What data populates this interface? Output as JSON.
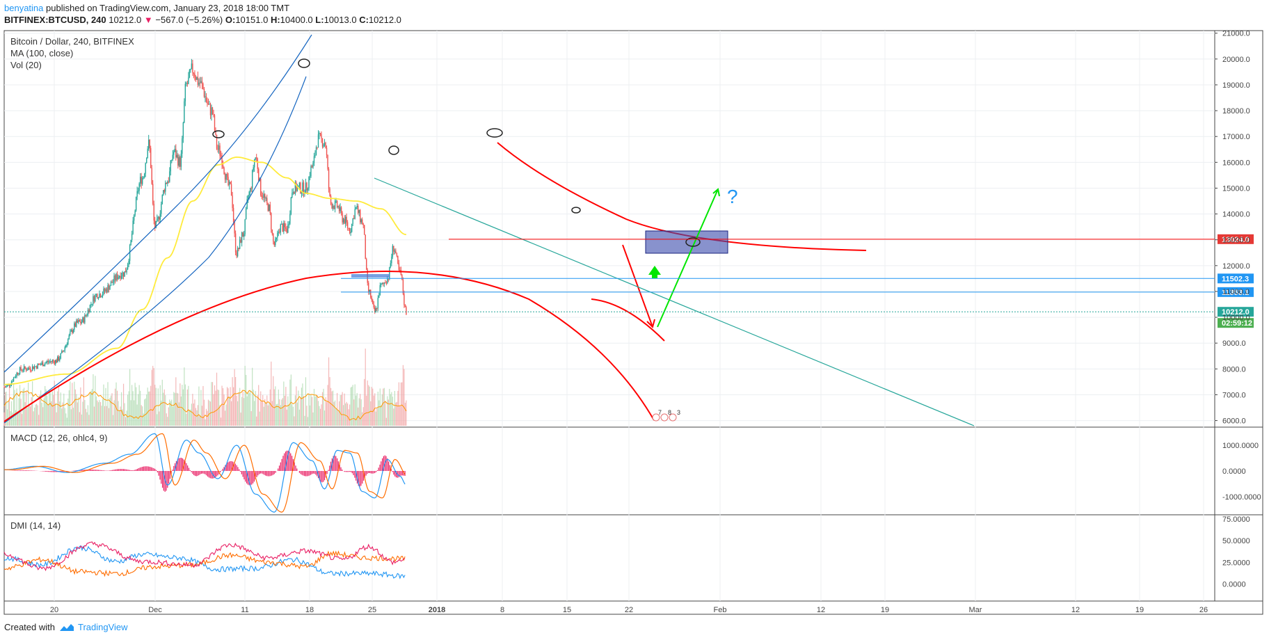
{
  "header": {
    "username": "benyatina",
    "published_text": " published on TradingView.com, January 23, 2018 18:00 TMT",
    "symbol": "BITFINEX:BTCUSD, 240",
    "last": "10212.0",
    "change": "−567.0 (−5.26%)",
    "o_label": "O:",
    "o_value": "10151.0",
    "h_label": "H:",
    "h_value": "10400.0",
    "l_label": "L:",
    "l_value": "10013.0",
    "c_label": "C:",
    "c_value": "10212.0"
  },
  "footer": {
    "created_with": "Created with",
    "brand": "TradingView"
  },
  "colors": {
    "up": "#26a69a",
    "down": "#ef5350",
    "ma": "#ffeb3b",
    "annotation_red": "#ff0000",
    "annotation_green": "#00e600",
    "annotation_blue": "#1565c0",
    "trend_teal": "#26a69a",
    "macd_line": "#2196f3",
    "signal_line": "#ff6d00",
    "hist": "#e91e63",
    "dmi_plus": "#2196f3",
    "dmi_minus": "#ff6d00",
    "adx": "#e91e63"
  },
  "chart_data": [
    {
      "type": "candlestick",
      "title": "Bitcoin / Dollar, 240, BITFINEX",
      "indicators": [
        "MA (100, close)",
        "Vol (20)"
      ],
      "x_tick_labels": [
        "20",
        "Dec",
        "11",
        "18",
        "25",
        "2018",
        "8",
        "15",
        "22",
        "Feb",
        "12",
        "19",
        "Mar",
        "12",
        "19",
        "26"
      ],
      "y_tick_labels": [
        "21000.0",
        "20000.0",
        "19000.0",
        "18000.0",
        "17000.0",
        "16000.0",
        "15000.0",
        "14000.0",
        "13000.0",
        "12000.0",
        "11000.0",
        "10000.0",
        "9000.0",
        "8000.0",
        "7000.0",
        "6000.0"
      ],
      "ylim": [
        5800,
        21100
      ],
      "price_anchors": [
        {
          "day": 0,
          "price": 7300
        },
        {
          "day": 3,
          "price": 8000
        },
        {
          "day": 8,
          "price": 8300
        },
        {
          "day": 12,
          "price": 9800
        },
        {
          "day": 15,
          "price": 10900
        },
        {
          "day": 19,
          "price": 11700
        },
        {
          "day": 22,
          "price": 15400
        },
        {
          "day": 23,
          "price": 16700
        },
        {
          "day": 24,
          "price": 13500
        },
        {
          "day": 26,
          "price": 15300
        },
        {
          "day": 27,
          "price": 16400
        },
        {
          "day": 28,
          "price": 16000
        },
        {
          "day": 29,
          "price": 19000
        },
        {
          "day": 30,
          "price": 19600
        },
        {
          "day": 31,
          "price": 19100
        },
        {
          "day": 33,
          "price": 18000
        },
        {
          "day": 34,
          "price": 16500
        },
        {
          "day": 36,
          "price": 15000
        },
        {
          "day": 37,
          "price": 12500
        },
        {
          "day": 38,
          "price": 13200
        },
        {
          "day": 39,
          "price": 14800
        },
        {
          "day": 40,
          "price": 16200
        },
        {
          "day": 41,
          "price": 14800
        },
        {
          "day": 42,
          "price": 14300
        },
        {
          "day": 43,
          "price": 12800
        },
        {
          "day": 44,
          "price": 13500
        },
        {
          "day": 45,
          "price": 13400
        },
        {
          "day": 46,
          "price": 15000
        },
        {
          "day": 48,
          "price": 15000
        },
        {
          "day": 49,
          "price": 15800
        },
        {
          "day": 50,
          "price": 16900
        },
        {
          "day": 51,
          "price": 16800
        },
        {
          "day": 52,
          "price": 14400
        },
        {
          "day": 53,
          "price": 14300
        },
        {
          "day": 54,
          "price": 13800
        },
        {
          "day": 55,
          "price": 13400
        },
        {
          "day": 56,
          "price": 14200
        },
        {
          "day": 57,
          "price": 13700
        },
        {
          "day": 58,
          "price": 11000
        },
        {
          "day": 59,
          "price": 10200
        },
        {
          "day": 60,
          "price": 11200
        },
        {
          "day": 61,
          "price": 11500
        },
        {
          "day": 62,
          "price": 12700
        },
        {
          "day": 63,
          "price": 11700
        },
        {
          "day": 64,
          "price": 10212
        }
      ],
      "ma100_anchors": [
        {
          "day": 0,
          "price": 7400
        },
        {
          "day": 10,
          "price": 7800
        },
        {
          "day": 18,
          "price": 8800
        },
        {
          "day": 22,
          "price": 10300
        },
        {
          "day": 26,
          "price": 12300
        },
        {
          "day": 30,
          "price": 14500
        },
        {
          "day": 34,
          "price": 15900
        },
        {
          "day": 37,
          "price": 16200
        },
        {
          "day": 41,
          "price": 16000
        },
        {
          "day": 45,
          "price": 15400
        },
        {
          "day": 48,
          "price": 14800
        },
        {
          "day": 52,
          "price": 14600
        },
        {
          "day": 56,
          "price": 14500
        },
        {
          "day": 60,
          "price": 14200
        },
        {
          "day": 64,
          "price": 13200
        }
      ],
      "horizontal_levels": [
        {
          "price": 13024.0,
          "label": "13024.0",
          "color": "#ff0000"
        },
        {
          "price": 11502.3,
          "label": "11502.3",
          "color": "#2196f3"
        },
        {
          "price": 11353.1,
          "label": "11353.1",
          "color": "#2196f3"
        }
      ],
      "last_price": {
        "price": 10212.0,
        "label": "10212.0",
        "countdown": "02:59:12"
      },
      "annotation_text": [
        "?"
      ],
      "event_labels": [
        "7",
        "8",
        "3"
      ]
    },
    {
      "type": "line",
      "title": "MACD (12, 26, ohlc4, 9)",
      "y_tick_labels": [
        "1000.0000",
        "0.0000",
        "-1000.0000"
      ],
      "ylim": [
        -1650,
        1650
      ],
      "macd_anchors": [
        {
          "day": 0,
          "value": 50
        },
        {
          "day": 5,
          "value": 180
        },
        {
          "day": 10,
          "value": -60
        },
        {
          "day": 16,
          "value": 300
        },
        {
          "day": 20,
          "value": 650
        },
        {
          "day": 24,
          "value": 1450
        },
        {
          "day": 26,
          "value": -550
        },
        {
          "day": 29,
          "value": 1200
        },
        {
          "day": 31,
          "value": 700
        },
        {
          "day": 34,
          "value": -300
        },
        {
          "day": 37,
          "value": 1000
        },
        {
          "day": 40,
          "value": -900
        },
        {
          "day": 43,
          "value": -1600
        },
        {
          "day": 46,
          "value": 1100
        },
        {
          "day": 49,
          "value": 400
        },
        {
          "day": 51,
          "value": -700
        },
        {
          "day": 53,
          "value": 800
        },
        {
          "day": 55,
          "value": 700
        },
        {
          "day": 57,
          "value": -800
        },
        {
          "day": 59,
          "value": -1050
        },
        {
          "day": 61,
          "value": 450
        },
        {
          "day": 63,
          "value": -200
        },
        {
          "day": 64,
          "value": -550
        }
      ]
    },
    {
      "type": "line",
      "title": "DMI (14, 14)",
      "y_tick_labels": [
        "75.0000",
        "50.0000",
        "25.0000",
        "0.0000"
      ],
      "ylim": [
        -18,
        78
      ],
      "plus_di_anchors": [
        {
          "day": 0,
          "value": 30
        },
        {
          "day": 6,
          "value": 22
        },
        {
          "day": 12,
          "value": 42
        },
        {
          "day": 18,
          "value": 26
        },
        {
          "day": 22,
          "value": 34
        },
        {
          "day": 28,
          "value": 30
        },
        {
          "day": 34,
          "value": 17
        },
        {
          "day": 40,
          "value": 18
        },
        {
          "day": 46,
          "value": 28
        },
        {
          "day": 52,
          "value": 12
        },
        {
          "day": 58,
          "value": 12
        },
        {
          "day": 64,
          "value": 9
        }
      ],
      "minus_di_anchors": [
        {
          "day": 0,
          "value": 18
        },
        {
          "day": 6,
          "value": 28
        },
        {
          "day": 12,
          "value": 14
        },
        {
          "day": 18,
          "value": 12
        },
        {
          "day": 24,
          "value": 20
        },
        {
          "day": 30,
          "value": 22
        },
        {
          "day": 36,
          "value": 33
        },
        {
          "day": 42,
          "value": 25
        },
        {
          "day": 48,
          "value": 20
        },
        {
          "day": 52,
          "value": 35
        },
        {
          "day": 58,
          "value": 30
        },
        {
          "day": 64,
          "value": 29
        }
      ],
      "adx_anchors": [
        {
          "day": 0,
          "value": 34
        },
        {
          "day": 6,
          "value": 18
        },
        {
          "day": 14,
          "value": 46
        },
        {
          "day": 22,
          "value": 26
        },
        {
          "day": 30,
          "value": 22
        },
        {
          "day": 36,
          "value": 45
        },
        {
          "day": 42,
          "value": 30
        },
        {
          "day": 48,
          "value": 38
        },
        {
          "day": 54,
          "value": 28
        },
        {
          "day": 58,
          "value": 43
        },
        {
          "day": 62,
          "value": 25
        },
        {
          "day": 64,
          "value": 29
        }
      ]
    }
  ]
}
